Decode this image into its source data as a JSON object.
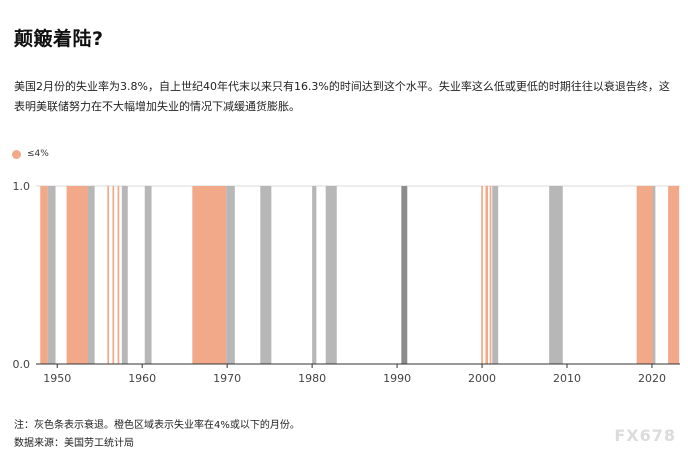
{
  "title": "颠簸着陆?",
  "subtitle": "美国2月份的失业率为3.8%，自上世纪40年代末以来只有16.3%的时间达到这个水平。失业率这么低或更低的时期往往以衰退告终，这表明美联储努力在不大幅增加失业的情况下减缓通货膨胀。",
  "note": "注：灰色条表示衰退。橙色区域表示失业率在4%或以下的月份。",
  "source": "数据来源：美国劳工统计局",
  "watermark": "FX678",
  "colors": {
    "low_unemployment": "#f2a98a",
    "recession": "#b7b7b7",
    "recession_dark": "#8c8c8c"
  },
  "chart_data": {
    "type": "bar",
    "legend": [
      {
        "label": "≤4%",
        "color": "#f2a98a"
      }
    ],
    "legend_position": "top-left",
    "ylim": [
      0,
      1
    ],
    "yticks": [
      {
        "value": 0,
        "label": "0.0"
      },
      {
        "value": 1,
        "label": "1.0"
      }
    ],
    "xlim": [
      1947.5,
      2023.3
    ],
    "xticks": [
      {
        "value": 1950,
        "label": "1950"
      },
      {
        "value": 1960,
        "label": "1960"
      },
      {
        "value": 1970,
        "label": "1970"
      },
      {
        "value": 1980,
        "label": "1980"
      },
      {
        "value": 1990,
        "label": "1990"
      },
      {
        "value": 2000,
        "label": "2000"
      },
      {
        "value": 2010,
        "label": "2010"
      },
      {
        "value": 2020,
        "label": "2020"
      }
    ],
    "low_unemployment_periods": [
      [
        1948.0,
        1948.9
      ],
      [
        1951.1,
        1953.8
      ],
      [
        1955.9,
        1956.1
      ],
      [
        1956.5,
        1956.7
      ],
      [
        1957.1,
        1957.3
      ],
      [
        1965.9,
        1969.9
      ],
      [
        1999.9,
        2000.1
      ],
      [
        2000.4,
        2000.7
      ],
      [
        2000.9,
        2001.1
      ],
      [
        2018.2,
        2020.2
      ],
      [
        2021.9,
        2023.2
      ]
    ],
    "recessions": [
      [
        1948.9,
        1949.8
      ],
      [
        1953.6,
        1954.4
      ],
      [
        1957.6,
        1958.3
      ],
      [
        1960.3,
        1961.1
      ],
      [
        1969.9,
        1970.9
      ],
      [
        1973.9,
        1975.2
      ],
      [
        1980.0,
        1980.5
      ],
      [
        1981.6,
        1982.9
      ],
      [
        1990.5,
        1991.2
      ],
      [
        2001.2,
        2001.9
      ],
      [
        2007.9,
        2009.5
      ],
      [
        2020.1,
        2020.4
      ]
    ],
    "dark_recessions": [
      [
        1990.5,
        1991.2
      ]
    ]
  }
}
